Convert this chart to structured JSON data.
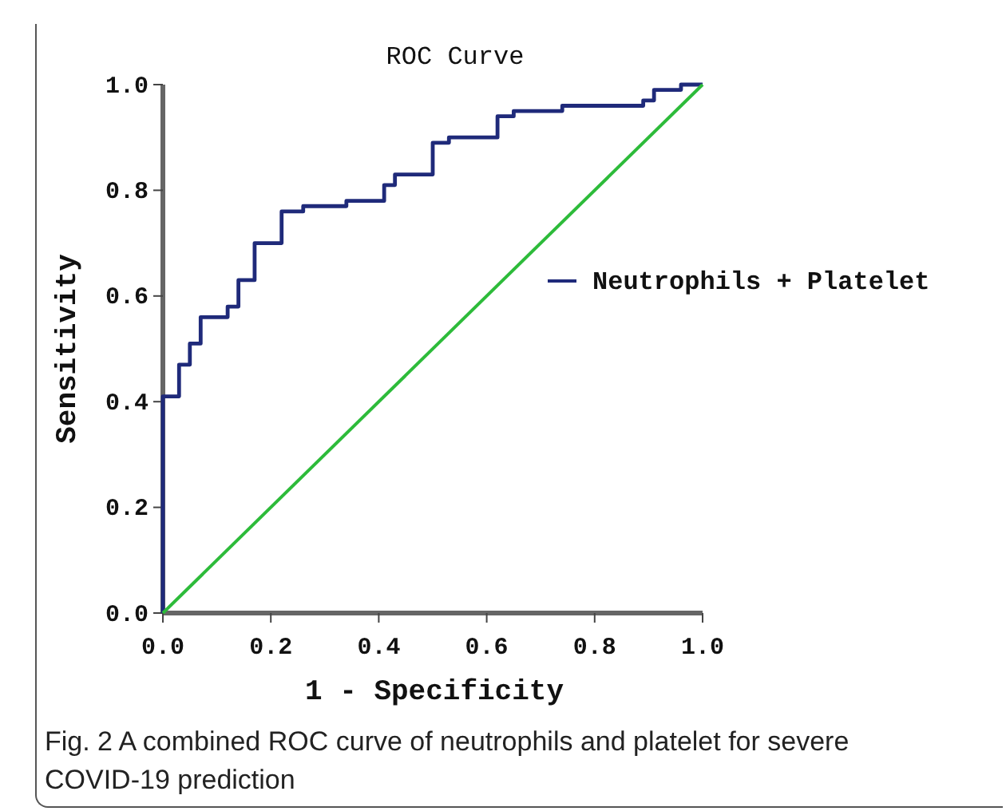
{
  "chart_data": {
    "type": "step",
    "title": "ROC Curve",
    "xlabel": "1 - Specificity",
    "ylabel": "Sensitivity",
    "annotations": [
      "Fig. 2  A combined ROC curve of neutrophils and platelet for severe COVID-19 prediction"
    ],
    "xlim": [
      0,
      1
    ],
    "ylim": [
      0,
      1
    ],
    "xticks": [
      {
        "value": 0,
        "label": "0.0"
      },
      {
        "value": 0.2,
        "label": "0.2"
      },
      {
        "value": 0.4,
        "label": "0.4"
      },
      {
        "value": 0.6,
        "label": "0.6"
      },
      {
        "value": 0.8,
        "label": "0.8"
      },
      {
        "value": 1,
        "label": "1.0"
      }
    ],
    "yticks": [
      {
        "value": 0,
        "label": "0.0"
      },
      {
        "value": 0.2,
        "label": "0.2"
      },
      {
        "value": 0.4,
        "label": "0.4"
      },
      {
        "value": 0.6,
        "label": "0.6"
      },
      {
        "value": 0.8,
        "label": "0.8"
      },
      {
        "value": 1,
        "label": "1.0"
      }
    ],
    "grid": false,
    "legend": "right",
    "marker": "none",
    "series": [
      {
        "name": "Neutrophils + Platelet",
        "color": "#1f2a7a",
        "x": [
          0,
          0,
          0.03,
          0.05,
          0.07,
          0.12,
          0.14,
          0.17,
          0.19,
          0.22,
          0.26,
          0.31,
          0.34,
          0.41,
          0.43,
          0.46,
          0.5,
          0.53,
          0.62,
          0.65,
          0.74,
          0.77,
          0.89,
          0.91,
          0.96,
          0.99,
          1
        ],
        "values": [
          0,
          0.41,
          0.47,
          0.51,
          0.56,
          0.58,
          0.63,
          0.7,
          0.7,
          0.76,
          0.77,
          0.77,
          0.78,
          0.81,
          0.83,
          0.83,
          0.89,
          0.9,
          0.94,
          0.95,
          0.96,
          0.96,
          0.97,
          0.99,
          1,
          1,
          1
        ]
      },
      {
        "color": "#2dbb3a",
        "type": "line",
        "x": [
          0,
          1
        ],
        "values": [
          0,
          1
        ]
      }
    ]
  }
}
